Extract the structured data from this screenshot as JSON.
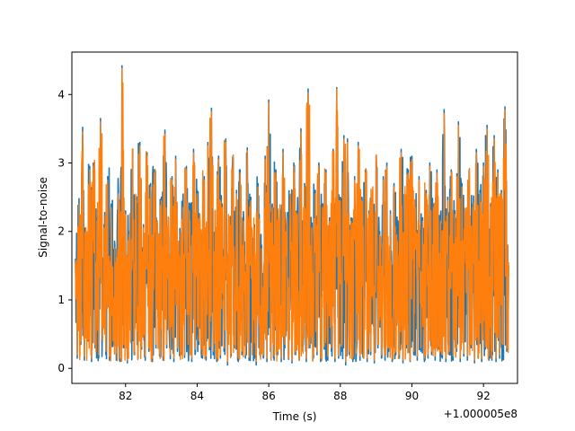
{
  "chart_data": {
    "type": "line",
    "title": "",
    "xlabel": "Time (s)",
    "ylabel": "Signal-to-noise",
    "x_offset_label": "+1.000005e8",
    "xlim": [
      80.5,
      92.95
    ],
    "ylim": [
      -0.22,
      4.62
    ],
    "x_ticks": [
      82,
      84,
      86,
      88,
      90,
      92
    ],
    "x_tick_labels": [
      "82",
      "84",
      "86",
      "88",
      "90",
      "92"
    ],
    "y_ticks": [
      0,
      1,
      2,
      3,
      4
    ],
    "y_tick_labels": [
      "0",
      "1",
      "2",
      "3",
      "4"
    ],
    "grid": false,
    "legend": "none",
    "x_range": [
      80.6,
      92.7
    ],
    "series": [
      {
        "color": "#1f77b4",
        "x": [
          80.6,
          80.65,
          80.7,
          80.75,
          80.8,
          80.85,
          80.9,
          80.95,
          81.0,
          81.05,
          81.1,
          81.15,
          81.2,
          81.25,
          81.3,
          81.35,
          81.4,
          81.45,
          81.5,
          81.55,
          81.6,
          81.65,
          81.7,
          81.75,
          81.8,
          81.85,
          81.9,
          81.95,
          82.0,
          82.05,
          82.1,
          82.15,
          82.2,
          82.25,
          82.3,
          82.35,
          82.4,
          82.45,
          82.5,
          82.55,
          82.6,
          82.65,
          82.7,
          82.75,
          82.8,
          82.85,
          82.9,
          82.95,
          83.0,
          83.05,
          83.1,
          83.15,
          83.2,
          83.25,
          83.3,
          83.35,
          83.4,
          83.45,
          83.5,
          83.55,
          83.6,
          83.65,
          83.7,
          83.75,
          83.8,
          83.85,
          83.9,
          83.95,
          84.0,
          84.05,
          84.1,
          84.15,
          84.2,
          84.25,
          84.3,
          84.35,
          84.4,
          84.45,
          84.5,
          84.55,
          84.6,
          84.65,
          84.7,
          84.75,
          84.8,
          84.85,
          84.9,
          84.95,
          85.0,
          85.05,
          85.1,
          85.15,
          85.2,
          85.25,
          85.3,
          85.35,
          85.4,
          85.45,
          85.5,
          85.55,
          85.6,
          85.65,
          85.7,
          85.75,
          85.8,
          85.85,
          85.9,
          85.95,
          86.0,
          86.05,
          86.1,
          86.15,
          86.2,
          86.25,
          86.3,
          86.35,
          86.4,
          86.45,
          86.5,
          86.55,
          86.6,
          86.65,
          86.7,
          86.75,
          86.8,
          86.85,
          86.9,
          86.95,
          87.0,
          87.05,
          87.1,
          87.15,
          87.2,
          87.25,
          87.3,
          87.35,
          87.4,
          87.45,
          87.5,
          87.55,
          87.6,
          87.65,
          87.7,
          87.75,
          87.8,
          87.85,
          87.9,
          87.95,
          88.0,
          88.05,
          88.1,
          88.15,
          88.2,
          88.25,
          88.3,
          88.35,
          88.4,
          88.45,
          88.5,
          88.55,
          88.6,
          88.65,
          88.7,
          88.75,
          88.8,
          88.85,
          88.9,
          88.95,
          89.0,
          89.05,
          89.1,
          89.15,
          89.2,
          89.25,
          89.3,
          89.35,
          89.4,
          89.45,
          89.5,
          89.55,
          89.6,
          89.65,
          89.7,
          89.75,
          89.8,
          89.85,
          89.9,
          89.95,
          90.0,
          90.05,
          90.1,
          90.15,
          90.2,
          90.25,
          90.3,
          90.35,
          90.4,
          90.45,
          90.5,
          90.55,
          90.6,
          90.65,
          90.7,
          90.75,
          90.8,
          90.85,
          90.9,
          90.95,
          91.0,
          91.05,
          91.1,
          91.15,
          91.2,
          91.25,
          91.3,
          91.35,
          91.4,
          91.45,
          91.5,
          91.55,
          91.6,
          91.65,
          91.7,
          91.75,
          91.8,
          91.85,
          91.9,
          91.95,
          92.0,
          92.05,
          92.1,
          92.15,
          92.2,
          92.25,
          92.3,
          92.35,
          92.4,
          92.45,
          92.5,
          92.55,
          92.6,
          92.65,
          92.7
        ],
        "y": [
          1.6,
          0.15,
          2.48,
          0.35,
          3.52,
          0.12,
          1.9,
          0.4,
          2.95,
          0.1,
          3.0,
          0.3,
          2.2,
          0.15,
          3.65,
          0.5,
          2.1,
          0.2,
          2.8,
          0.12,
          2.4,
          0.35,
          1.8,
          0.18,
          2.6,
          0.1,
          4.42,
          0.3,
          2.3,
          0.08,
          2.0,
          0.4,
          3.2,
          0.2,
          2.5,
          0.15,
          3.3,
          0.28,
          2.1,
          0.12,
          3.15,
          0.25,
          2.7,
          0.1,
          2.9,
          0.3,
          1.9,
          0.18,
          2.5,
          0.12,
          3.48,
          0.3,
          2.2,
          0.14,
          2.8,
          0.1,
          3.1,
          0.25,
          1.7,
          0.2,
          2.4,
          0.16,
          2.95,
          0.3,
          2.2,
          0.1,
          3.2,
          0.22,
          2.6,
          0.35,
          2.0,
          0.15,
          2.8,
          0.12,
          3.3,
          0.28,
          3.8,
          0.2,
          2.3,
          0.1,
          3.1,
          0.15,
          2.4,
          0.25,
          3.35,
          0.05,
          2.0,
          0.18,
          3.1,
          0.3,
          2.6,
          0.1,
          2.9,
          0.2,
          2.2,
          0.15,
          3.22,
          0.12,
          2.5,
          0.3,
          2.1,
          0.05,
          2.7,
          0.2,
          1.8,
          0.15,
          3.1,
          0.1,
          3.92,
          0.25,
          2.4,
          0.12,
          2.9,
          0.2,
          2.2,
          0.1,
          3.2,
          0.3,
          2.0,
          0.14,
          2.5,
          0.08,
          3.0,
          0.2,
          2.3,
          0.12,
          3.5,
          0.25,
          2.7,
          0.1,
          4.08,
          0.3,
          2.1,
          0.15,
          2.6,
          0.2,
          3.0,
          0.1,
          2.4,
          0.28,
          2.9,
          0.12,
          2.2,
          0.25,
          3.2,
          0.1,
          4.1,
          0.15,
          2.5,
          0.3,
          3.4,
          0.05,
          3.35,
          0.2,
          2.2,
          0.1,
          2.8,
          0.25,
          3.3,
          0.12,
          2.5,
          0.15,
          2.9,
          0.1,
          2.3,
          0.2,
          2.6,
          0.08,
          3.1,
          0.3,
          2.0,
          0.15,
          2.8,
          0.12,
          3.0,
          0.25,
          2.3,
          0.1,
          2.7,
          0.2,
          1.9,
          0.15,
          3.2,
          0.08,
          2.5,
          0.3,
          2.9,
          0.1,
          3.1,
          0.2,
          2.4,
          0.12,
          2.8,
          0.25,
          2.2,
          0.1,
          2.6,
          0.15,
          3.0,
          0.2,
          2.4,
          0.12,
          2.9,
          0.28,
          2.2,
          0.15,
          3.78,
          0.1,
          2.5,
          0.2,
          2.9,
          0.12,
          2.3,
          0.25,
          3.6,
          0.1,
          2.7,
          0.18,
          2.2,
          0.12,
          2.9,
          0.3,
          2.4,
          0.08,
          3.2,
          0.15,
          2.6,
          0.1,
          3.0,
          0.28,
          3.55,
          0.12,
          2.4,
          0.2,
          3.4,
          0.1,
          2.9,
          0.15,
          2.6,
          0.3,
          3.82,
          0.25,
          1.5
        ]
      },
      {
        "color": "#ff7f0e",
        "x": [
          80.6,
          80.65,
          80.7,
          80.75,
          80.8,
          80.85,
          80.9,
          80.95,
          81.0,
          81.05,
          81.1,
          81.15,
          81.2,
          81.25,
          81.3,
          81.35,
          81.4,
          81.45,
          81.5,
          81.55,
          81.6,
          81.65,
          81.7,
          81.75,
          81.8,
          81.85,
          81.9,
          81.95,
          82.0,
          82.05,
          82.1,
          82.15,
          82.2,
          82.25,
          82.3,
          82.35,
          82.4,
          82.45,
          82.5,
          82.55,
          82.6,
          82.65,
          82.7,
          82.75,
          82.8,
          82.85,
          82.9,
          82.95,
          83.0,
          83.05,
          83.1,
          83.15,
          83.2,
          83.25,
          83.3,
          83.35,
          83.4,
          83.45,
          83.5,
          83.55,
          83.6,
          83.65,
          83.7,
          83.75,
          83.8,
          83.85,
          83.9,
          83.95,
          84.0,
          84.05,
          84.1,
          84.15,
          84.2,
          84.25,
          84.3,
          84.35,
          84.4,
          84.45,
          84.5,
          84.55,
          84.6,
          84.65,
          84.7,
          84.75,
          84.8,
          84.85,
          84.9,
          84.95,
          85.0,
          85.05,
          85.1,
          85.15,
          85.2,
          85.25,
          85.3,
          85.35,
          85.4,
          85.45,
          85.5,
          85.55,
          85.6,
          85.65,
          85.7,
          85.75,
          85.8,
          85.85,
          85.9,
          85.95,
          86.0,
          86.05,
          86.1,
          86.15,
          86.2,
          86.25,
          86.3,
          86.35,
          86.4,
          86.45,
          86.5,
          86.55,
          86.6,
          86.65,
          86.7,
          86.75,
          86.8,
          86.85,
          86.9,
          86.95,
          87.0,
          87.05,
          87.1,
          87.15,
          87.2,
          87.25,
          87.3,
          87.35,
          87.4,
          87.45,
          87.5,
          87.55,
          87.6,
          87.65,
          87.7,
          87.75,
          87.8,
          87.85,
          87.9,
          87.95,
          88.0,
          88.05,
          88.1,
          88.15,
          88.2,
          88.25,
          88.3,
          88.35,
          88.4,
          88.45,
          88.5,
          88.55,
          88.6,
          88.65,
          88.7,
          88.75,
          88.8,
          88.85,
          88.9,
          88.95,
          89.0,
          89.05,
          89.1,
          89.15,
          89.2,
          89.25,
          89.3,
          89.35,
          89.4,
          89.45,
          89.5,
          89.55,
          89.6,
          89.65,
          89.7,
          89.75,
          89.8,
          89.85,
          89.9,
          89.95,
          90.0,
          90.05,
          90.1,
          90.15,
          90.2,
          90.25,
          90.3,
          90.35,
          90.4,
          90.45,
          90.5,
          90.55,
          90.6,
          90.65,
          90.7,
          90.75,
          90.8,
          90.85,
          90.9,
          90.95,
          91.0,
          91.05,
          91.1,
          91.15,
          91.2,
          91.25,
          91.3,
          91.35,
          91.4,
          91.45,
          91.5,
          91.55,
          91.6,
          91.65,
          91.7,
          91.75,
          91.8,
          91.85,
          91.9,
          91.95,
          92.0,
          92.05,
          92.1,
          92.15,
          92.2,
          92.25,
          92.3,
          92.35,
          92.4,
          92.45,
          92.5,
          92.55,
          92.6,
          92.65,
          92.7
        ],
        "y": [
          1.55,
          0.2,
          2.4,
          0.4,
          3.45,
          0.18,
          1.85,
          0.45,
          2.9,
          0.15,
          2.95,
          0.35,
          2.15,
          0.2,
          3.6,
          0.55,
          2.05,
          0.25,
          2.75,
          0.18,
          2.35,
          0.4,
          1.75,
          0.22,
          2.55,
          0.15,
          4.38,
          0.35,
          2.25,
          0.12,
          1.95,
          0.45,
          3.15,
          0.25,
          2.45,
          0.2,
          3.25,
          0.32,
          2.05,
          0.18,
          3.1,
          0.3,
          2.65,
          0.15,
          2.85,
          0.35,
          1.85,
          0.22,
          2.45,
          0.18,
          3.42,
          0.35,
          2.15,
          0.2,
          2.75,
          0.15,
          3.05,
          0.3,
          1.65,
          0.25,
          2.35,
          0.2,
          2.9,
          0.35,
          2.15,
          0.15,
          3.15,
          0.28,
          2.55,
          0.4,
          1.95,
          0.2,
          2.75,
          0.18,
          3.25,
          0.32,
          3.75,
          0.25,
          2.25,
          0.15,
          3.05,
          0.2,
          2.35,
          0.3,
          3.3,
          0.1,
          1.95,
          0.22,
          3.05,
          0.35,
          2.55,
          0.15,
          2.85,
          0.25,
          2.15,
          0.2,
          3.18,
          0.16,
          2.45,
          0.35,
          2.05,
          0.1,
          2.65,
          0.25,
          1.75,
          0.2,
          3.05,
          0.15,
          3.88,
          0.3,
          2.35,
          0.18,
          2.85,
          0.25,
          2.15,
          0.15,
          3.15,
          0.35,
          1.95,
          0.2,
          2.45,
          0.12,
          2.95,
          0.25,
          2.25,
          0.18,
          3.45,
          0.3,
          2.65,
          0.15,
          4.02,
          0.35,
          2.05,
          0.2,
          2.55,
          0.25,
          2.95,
          0.15,
          2.35,
          0.32,
          2.85,
          0.18,
          2.15,
          0.3,
          3.15,
          0.15,
          4.08,
          0.2,
          2.45,
          0.35,
          3.35,
          0.1,
          3.3,
          0.25,
          2.15,
          0.15,
          2.75,
          0.3,
          3.25,
          0.18,
          2.45,
          0.2,
          2.85,
          0.15,
          2.25,
          0.25,
          2.55,
          0.12,
          3.05,
          0.35,
          1.95,
          0.2,
          2.75,
          0.18,
          2.95,
          0.3,
          2.25,
          0.15,
          2.65,
          0.25,
          1.85,
          0.2,
          3.15,
          0.12,
          2.45,
          0.35,
          2.85,
          0.15,
          3.05,
          0.25,
          2.35,
          0.18,
          2.75,
          0.3,
          2.15,
          0.15,
          2.55,
          0.2,
          2.95,
          0.25,
          2.35,
          0.18,
          2.85,
          0.32,
          2.15,
          0.2,
          3.72,
          0.15,
          2.45,
          0.25,
          2.85,
          0.18,
          2.25,
          0.3,
          3.55,
          0.15,
          2.65,
          0.22,
          2.15,
          0.18,
          2.85,
          0.35,
          2.35,
          0.12,
          3.15,
          0.2,
          2.55,
          0.15,
          2.95,
          0.32,
          3.5,
          0.18,
          2.35,
          0.25,
          3.35,
          0.15,
          2.85,
          0.2,
          2.55,
          0.35,
          3.78,
          0.3,
          1.55
        ]
      }
    ]
  }
}
